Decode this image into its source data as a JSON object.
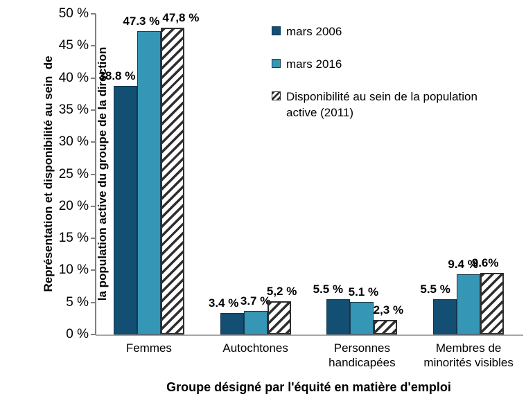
{
  "chart_data": {
    "type": "bar",
    "title": "",
    "categories": [
      "Femmes",
      "Autochtones",
      "Personnes handicapées",
      "Membres de minorités visibles"
    ],
    "series": [
      {
        "name": "mars 2006",
        "color": "#134e73",
        "border_color": "#10364e",
        "values": [
          38.8,
          3.4,
          5.5,
          5.5
        ],
        "value_labels": [
          "38.8 %",
          "3.4 %",
          "5.5 %",
          "5.5 %"
        ]
      },
      {
        "name": "mars 2016",
        "color": "#3596b5",
        "border_color": "#1b3a4d",
        "values": [
          47.3,
          3.7,
          5.1,
          9.4
        ],
        "value_labels": [
          "47.3 %",
          "3.7 %",
          "5.1 %",
          "9.4 %"
        ]
      },
      {
        "name": "Disponibilité au sein de la population active (2011)",
        "pattern": "diagonal-hatch",
        "hatch_color": "#2e2e2e",
        "background": "#ffffff",
        "border_color": "#2e2e2e",
        "values": [
          47.8,
          5.2,
          2.3,
          9.6
        ],
        "value_labels": [
          "47,8 %",
          "5,2 %",
          "2,3 %",
          "9.6%"
        ]
      }
    ],
    "xlabel": "Groupe désigné par l'équité en matière d'emploi",
    "ylabel": "Représentation et disponibilité au sein de la population active du groupe de la direction",
    "ylabel_lines": [
      "Représentation et disponibilité au sein  de",
      "la population active du groupe de la direction"
    ],
    "ylim": [
      0,
      50
    ],
    "yticks": [
      0,
      5,
      10,
      15,
      20,
      25,
      30,
      35,
      40,
      45,
      50
    ],
    "ytick_suffix": " %",
    "grid": false,
    "legend_position": "top-right",
    "layout_hints": {
      "label_dx": [
        [
          -12,
          -12,
          -15,
          -14
        ],
        [
          -11,
          0,
          2,
          -8
        ],
        [
          12,
          4,
          4,
          -10
        ]
      ]
    }
  }
}
